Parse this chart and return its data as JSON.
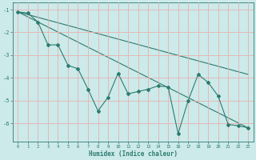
{
  "xlabel": "Humidex (Indice chaleur)",
  "bg_color": "#cceaea",
  "grid_color": "#e8b0b0",
  "line_color": "#2d7b6e",
  "xlim": [
    -0.5,
    23.5
  ],
  "ylim": [
    -6.8,
    -0.7
  ],
  "yticks": [
    -6,
    -5,
    -4,
    -3,
    -2,
    -1
  ],
  "xticks": [
    0,
    1,
    2,
    3,
    4,
    5,
    6,
    7,
    8,
    9,
    10,
    11,
    12,
    13,
    14,
    15,
    16,
    17,
    18,
    19,
    20,
    21,
    22,
    23
  ],
  "line1_x": [
    0,
    1,
    2,
    3,
    4,
    5,
    6,
    7,
    8,
    9,
    10,
    11,
    12,
    13,
    14,
    15,
    16,
    17,
    18,
    19,
    20,
    21,
    22,
    23
  ],
  "line1_y": [
    -1.1,
    -1.15,
    -1.55,
    -2.55,
    -2.55,
    -3.45,
    -3.6,
    -4.5,
    -5.45,
    -4.85,
    -3.8,
    -4.7,
    -4.6,
    -4.5,
    -4.35,
    -4.4,
    -6.45,
    -5.0,
    -3.85,
    -4.2,
    -4.8,
    -6.05,
    -6.1,
    -6.2
  ],
  "line2_x": [
    0,
    23
  ],
  "line2_y": [
    -1.1,
    -3.85
  ],
  "line3_x": [
    0,
    23
  ],
  "line3_y": [
    -1.1,
    -6.2
  ]
}
